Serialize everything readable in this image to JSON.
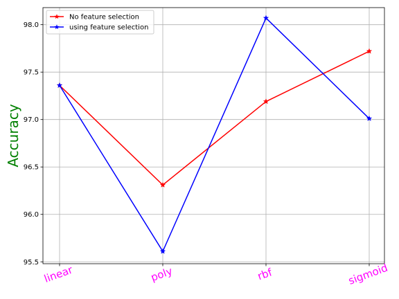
{
  "chart_data": {
    "type": "line",
    "categories": [
      "linear",
      "poly",
      "rbf",
      "sigmoid"
    ],
    "series": [
      {
        "name": "No feature selection",
        "values": [
          97.36,
          96.31,
          97.19,
          97.72
        ],
        "color": "#ff0000",
        "marker": "star"
      },
      {
        "name": "using feature selection",
        "values": [
          97.36,
          95.61,
          98.07,
          97.01
        ],
        "color": "#0000ff",
        "marker": "star"
      }
    ],
    "title": "",
    "xlabel": "",
    "ylabel": "Accuracy",
    "ylabel_color": "#008000",
    "xtick_color": "#ff00ff",
    "ylim": [
      95.48,
      98.18
    ],
    "yticks": [
      "95.5",
      "96.0",
      "96.5",
      "97.0",
      "97.5",
      "98.0"
    ],
    "grid": true,
    "legend_position": "top-left"
  }
}
